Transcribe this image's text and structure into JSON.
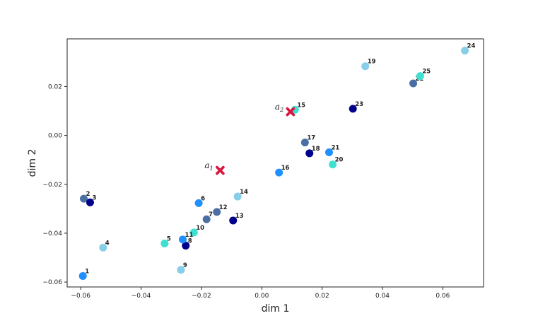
{
  "chart_data": {
    "type": "scatter",
    "xlabel": "dim 1",
    "ylabel": "dim 2",
    "xlim": [
      -0.0645,
      0.0735
    ],
    "ylim": [
      -0.062,
      0.0395
    ],
    "x_ticks": [
      -0.06,
      -0.04,
      -0.02,
      0.0,
      0.02,
      0.04,
      0.06
    ],
    "x_tick_labels": [
      "−0.06",
      "−0.04",
      "−0.02",
      "0.00",
      "0.02",
      "0.04",
      "0.06"
    ],
    "y_ticks": [
      -0.06,
      -0.04,
      -0.02,
      0.0,
      0.02
    ],
    "y_tick_labels": [
      "−0.06",
      "−0.04",
      "−0.02",
      "0.00",
      "0.02"
    ],
    "grid": false,
    "points": [
      {
        "label": "1",
        "x": -0.0593,
        "y": -0.0575,
        "color": "#1e90ff"
      },
      {
        "label": "2",
        "x": -0.059,
        "y": -0.0259,
        "color": "#4a6fa5"
      },
      {
        "label": "3",
        "x": -0.0569,
        "y": -0.0274,
        "color": "#00008b"
      },
      {
        "label": "4",
        "x": -0.0526,
        "y": -0.0459,
        "color": "#87ceeb"
      },
      {
        "label": "5",
        "x": -0.0322,
        "y": -0.0442,
        "color": "#40e0d0"
      },
      {
        "label": "6",
        "x": -0.0209,
        "y": -0.0277,
        "color": "#1e90ff"
      },
      {
        "label": "7",
        "x": -0.0183,
        "y": -0.0343,
        "color": "#4a6fa5"
      },
      {
        "label": "8",
        "x": -0.0252,
        "y": -0.0451,
        "color": "#00008b"
      },
      {
        "label": "9",
        "x": -0.0268,
        "y": -0.055,
        "color": "#87ceeb"
      },
      {
        "label": "10",
        "x": -0.0225,
        "y": -0.0397,
        "color": "#40e0d0"
      },
      {
        "label": "11",
        "x": -0.0262,
        "y": -0.0426,
        "color": "#1e90ff"
      },
      {
        "label": "12",
        "x": -0.0149,
        "y": -0.0313,
        "color": "#4a6fa5"
      },
      {
        "label": "13",
        "x": -0.0095,
        "y": -0.0348,
        "color": "#00008b"
      },
      {
        "label": "14",
        "x": -0.008,
        "y": -0.025,
        "color": "#87ceeb"
      },
      {
        "label": "15",
        "x": 0.011,
        "y": 0.0105,
        "color": "#40e0d0"
      },
      {
        "label": "16",
        "x": 0.0057,
        "y": -0.0152,
        "color": "#1e90ff"
      },
      {
        "label": "17",
        "x": 0.0143,
        "y": -0.0029,
        "color": "#4a6fa5"
      },
      {
        "label": "18",
        "x": 0.0158,
        "y": -0.0073,
        "color": "#00008b"
      },
      {
        "label": "19",
        "x": 0.0343,
        "y": 0.0283,
        "color": "#87ceeb"
      },
      {
        "label": "20",
        "x": 0.0235,
        "y": -0.0119,
        "color": "#40e0d0"
      },
      {
        "label": "21",
        "x": 0.0223,
        "y": -0.0069,
        "color": "#1e90ff"
      },
      {
        "label": "22",
        "x": 0.0502,
        "y": 0.0213,
        "color": "#4a6fa5"
      },
      {
        "label": "23",
        "x": 0.0302,
        "y": 0.0109,
        "color": "#00008b"
      },
      {
        "label": "24",
        "x": 0.0673,
        "y": 0.0347,
        "color": "#87ceeb"
      },
      {
        "label": "25",
        "x": 0.0525,
        "y": 0.0243,
        "color": "#40e0d0"
      }
    ],
    "anchors": [
      {
        "label": "a",
        "subscript": "1",
        "x": -0.0138,
        "y": -0.0143,
        "color": "#dc143c"
      },
      {
        "label": "a",
        "subscript": "2",
        "x": 0.0095,
        "y": 0.0097,
        "color": "#dc143c"
      }
    ]
  }
}
